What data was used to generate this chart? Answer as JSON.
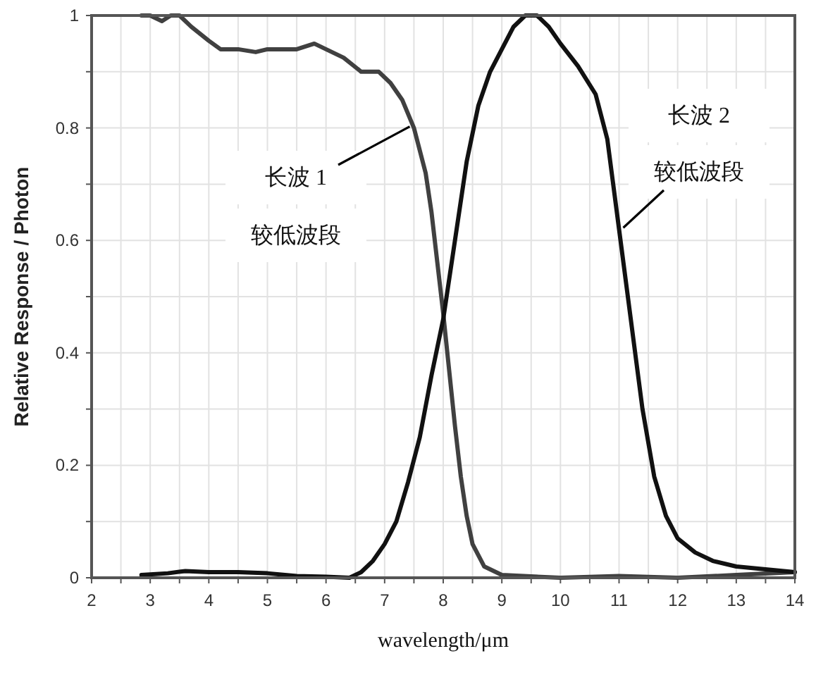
{
  "chart_data": {
    "type": "line",
    "xlabel": "wavelength/μm",
    "ylabel": "Relative Response / Photon",
    "xlim": [
      2,
      14
    ],
    "ylim": [
      0,
      1
    ],
    "xticks": [
      2,
      {
        "value": 2.5,
        "label": null
      },
      3,
      {
        "value": 3.5,
        "label": null
      },
      4,
      {
        "value": 4.5,
        "label": null
      },
      5,
      {
        "value": 5.5,
        "label": null
      },
      6,
      {
        "value": 6.5,
        "label": null
      },
      7,
      {
        "value": 7.5,
        "label": null
      },
      8,
      {
        "value": 8.5,
        "label": null
      },
      9,
      {
        "value": 9.5,
        "label": null
      },
      10,
      {
        "value": 10.5,
        "label": null
      },
      11,
      {
        "value": 11.5,
        "label": null
      },
      12,
      {
        "value": 12.5,
        "label": null
      },
      13,
      {
        "value": 13.5,
        "label": null
      },
      14
    ],
    "yticks": [
      0,
      {
        "value": 0.1,
        "label": null
      },
      0.2,
      {
        "value": 0.3,
        "label": null
      },
      0.4,
      {
        "value": 0.5,
        "label": null
      },
      0.6,
      {
        "value": 0.7,
        "label": null
      },
      0.8,
      {
        "value": 0.9,
        "label": null
      },
      1
    ],
    "grid": true,
    "marker": "none",
    "line_style": "solid",
    "series": [
      {
        "color": "#404040",
        "x": [
          2.85,
          3.0,
          3.2,
          3.35,
          3.5,
          3.7,
          4.0,
          4.2,
          4.5,
          4.8,
          5.0,
          5.5,
          5.8,
          6.0,
          6.3,
          6.6,
          6.9,
          7.1,
          7.3,
          7.5,
          7.7,
          7.8,
          7.9,
          8.0,
          8.1,
          8.2,
          8.3,
          8.4,
          8.5,
          8.7,
          9.0,
          10.0,
          11.0,
          12.0,
          13.0,
          14.0
        ],
        "values": [
          1.0,
          1.0,
          0.99,
          1.0,
          1.0,
          0.98,
          0.955,
          0.94,
          0.94,
          0.935,
          0.94,
          0.94,
          0.95,
          0.94,
          0.925,
          0.9,
          0.9,
          0.88,
          0.85,
          0.8,
          0.72,
          0.65,
          0.56,
          0.47,
          0.37,
          0.27,
          0.18,
          0.11,
          0.06,
          0.02,
          0.005,
          0.0,
          0.003,
          0.0,
          0.005,
          0.01
        ]
      },
      {
        "color": "#111111",
        "x": [
          2.85,
          3.3,
          3.6,
          4.0,
          4.5,
          5.0,
          5.5,
          6.0,
          6.4,
          6.6,
          6.8,
          7.0,
          7.2,
          7.4,
          7.6,
          7.8,
          8.0,
          8.2,
          8.4,
          8.6,
          8.8,
          9.0,
          9.2,
          9.4,
          9.6,
          9.8,
          10.0,
          10.3,
          10.6,
          10.8,
          11.0,
          11.2,
          11.4,
          11.6,
          11.8,
          12.0,
          12.3,
          12.6,
          13.0,
          13.5,
          14.0
        ],
        "values": [
          0.005,
          0.008,
          0.012,
          0.01,
          0.01,
          0.008,
          0.003,
          0.002,
          0.0,
          0.01,
          0.03,
          0.06,
          0.1,
          0.17,
          0.25,
          0.36,
          0.46,
          0.6,
          0.74,
          0.84,
          0.9,
          0.94,
          0.98,
          1.0,
          1.0,
          0.98,
          0.95,
          0.91,
          0.86,
          0.78,
          0.62,
          0.46,
          0.3,
          0.18,
          0.11,
          0.07,
          0.045,
          0.03,
          0.02,
          0.015,
          0.01
        ]
      }
    ],
    "annotations": [
      {
        "text": "长波 1",
        "x": 7.5,
        "y": 0.8
      },
      "较低波段",
      "长波 2",
      {
        "text": "较低波段",
        "x": 11.0,
        "y": 0.62
      }
    ]
  }
}
